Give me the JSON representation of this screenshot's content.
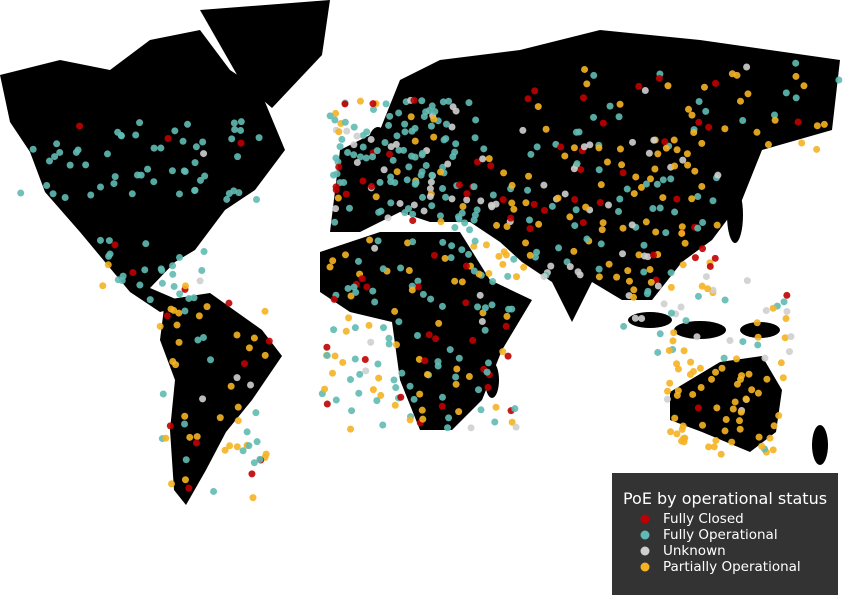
{
  "legend": {
    "title": "PoE by operational status",
    "items": [
      {
        "label": "Fully Closed",
        "color": "#c00000"
      },
      {
        "label": "Fully Operational",
        "color": "#5fbab3"
      },
      {
        "label": "Unknown",
        "color": "#cfcfcf"
      },
      {
        "label": "Partially Operational",
        "color": "#f5b324"
      }
    ]
  }
}
